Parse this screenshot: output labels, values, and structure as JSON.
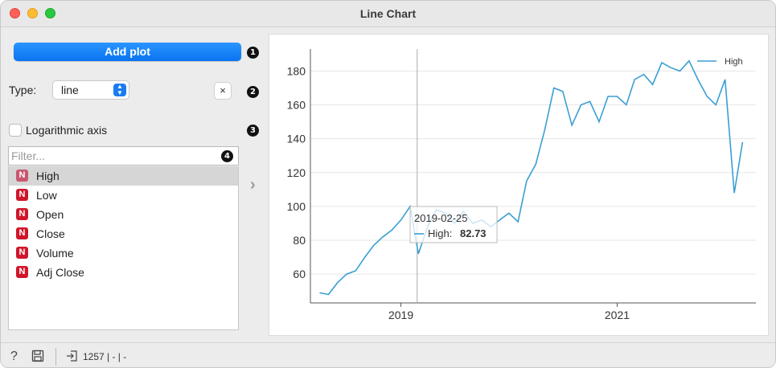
{
  "window": {
    "title": "Line Chart"
  },
  "controls": {
    "add_plot_label": "Add plot",
    "type_label": "Type:",
    "type_value": "line",
    "remove_label": "×",
    "log_axis_label": "Logarithmic axis",
    "filter_placeholder": "Filter...",
    "badges": [
      "1",
      "2",
      "3",
      "4"
    ]
  },
  "variables": [
    {
      "label": "High",
      "icon": "N",
      "selected": true
    },
    {
      "label": "Low",
      "icon": "N",
      "selected": false
    },
    {
      "label": "Open",
      "icon": "N",
      "selected": false
    },
    {
      "label": "Close",
      "icon": "N",
      "selected": false
    },
    {
      "label": "Volume",
      "icon": "N",
      "selected": false
    },
    {
      "label": "Adj Close",
      "icon": "N",
      "selected": false
    }
  ],
  "tooltip": {
    "date": "2019-02-25",
    "series": "High:",
    "value": "82.73"
  },
  "status": {
    "text": "1257 | - | -"
  },
  "colors": {
    "line": "#3a9fd4",
    "accent": "#0a7cf0",
    "var_icon": "#d0162b"
  },
  "chart_data": {
    "type": "line",
    "series": [
      {
        "name": "High",
        "x": [
          "2018-04-01",
          "2018-05-01",
          "2018-06-01",
          "2018-07-01",
          "2018-08-01",
          "2018-09-01",
          "2018-10-01",
          "2018-11-01",
          "2018-12-01",
          "2019-01-01",
          "2019-02-01",
          "2019-03-01",
          "2019-04-01",
          "2019-05-01",
          "2019-06-01",
          "2019-07-01",
          "2019-08-01",
          "2019-09-01",
          "2019-10-01",
          "2019-11-01",
          "2019-12-01",
          "2020-01-01",
          "2020-02-01",
          "2020-03-01",
          "2020-04-01",
          "2020-05-01",
          "2020-06-01",
          "2020-07-01",
          "2020-08-01",
          "2020-09-01",
          "2020-10-01",
          "2020-11-01",
          "2020-12-01",
          "2021-01-01",
          "2021-02-01",
          "2021-03-01",
          "2021-04-01",
          "2021-05-01",
          "2021-06-01",
          "2021-07-01",
          "2021-08-01",
          "2021-09-01",
          "2021-10-01",
          "2021-11-01",
          "2021-12-01",
          "2022-01-01",
          "2022-02-01",
          "2022-03-01"
        ],
        "values": [
          49,
          48,
          55,
          60,
          62,
          70,
          77,
          82,
          86,
          92,
          100,
          72,
          88,
          98,
          96,
          90,
          97,
          90,
          92,
          88,
          92,
          96,
          91,
          115,
          125,
          145,
          170,
          168,
          148,
          160,
          162,
          150,
          165,
          165,
          160,
          175,
          178,
          172,
          185,
          182,
          180,
          186,
          175,
          165,
          160,
          175,
          108,
          138
        ]
      }
    ],
    "x_ticks": [
      "2019",
      "2021"
    ],
    "y_ticks": [
      60,
      80,
      100,
      120,
      140,
      160,
      180
    ],
    "ylim": [
      43,
      193
    ],
    "xlim": [
      "2018-03-01",
      "2022-04-15"
    ],
    "legend": "top-right",
    "grid": "horizontal"
  }
}
